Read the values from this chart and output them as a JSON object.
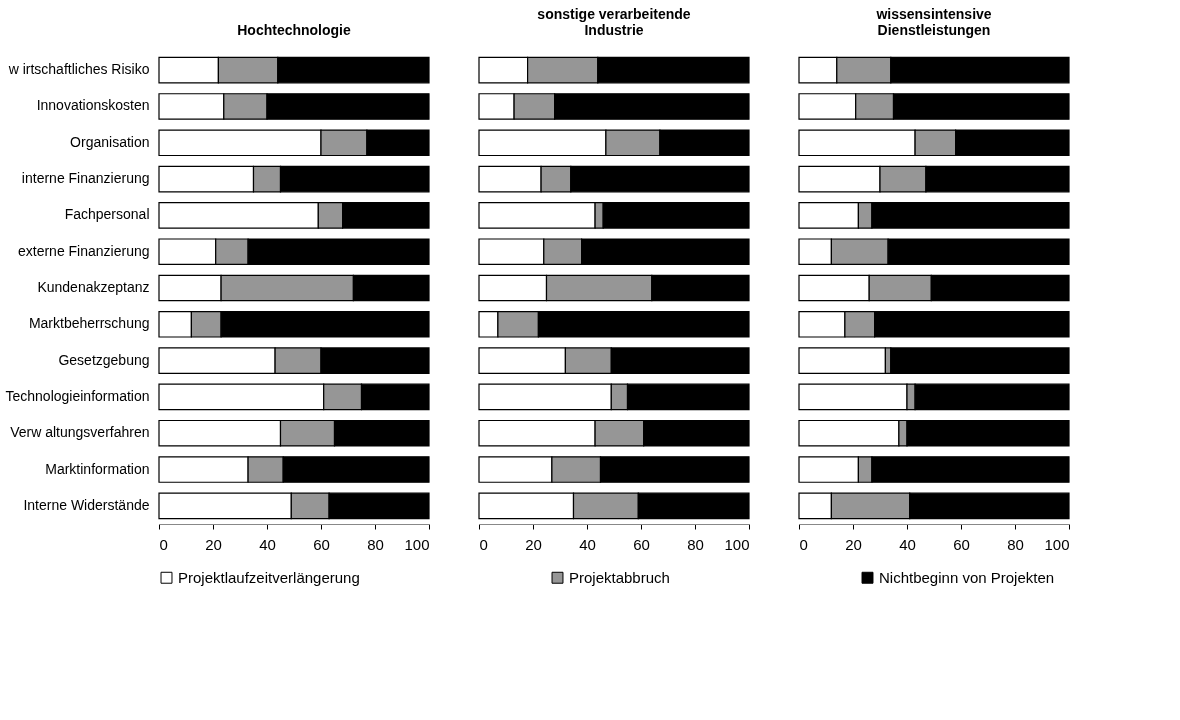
{
  "chart_data": [
    {
      "type": "bar",
      "orientation": "horizontal",
      "stacked": true,
      "title": "Hochtechnologie",
      "legend": "bottom",
      "grid": false,
      "categories": [
        "w irtschaftliches Risiko",
        "Innovationskosten",
        "Organisation",
        "interne Finanzierung",
        "Fachpersonal",
        "externe Finanzierung",
        "Kundenakzeptanz",
        "Marktbeherrschung",
        "Gesetzgebung",
        "Technologieinformation",
        "Verw altungsverfahren",
        "Marktinformation",
        "Interne Widerstände"
      ],
      "xlim": [
        0,
        100
      ],
      "xticks": [
        0,
        20,
        40,
        60,
        80,
        100
      ],
      "series": [
        {
          "name": "Projektlaufzeitverlängerung",
          "color": "#ffffff",
          "values": [
            22,
            24,
            60,
            35,
            59,
            21,
            23,
            12,
            43,
            61,
            45,
            33,
            49
          ]
        },
        {
          "name": "Projektabbruch",
          "color": "#969696",
          "values": [
            22,
            16,
            17,
            10,
            9,
            12,
            49,
            11,
            17,
            14,
            20,
            13,
            14
          ]
        },
        {
          "name": "Nichtbeginn von Projekten",
          "color": "#000000",
          "values": [
            56,
            60,
            23,
            55,
            32,
            67,
            28,
            77,
            40,
            25,
            35,
            54,
            37
          ]
        }
      ]
    },
    {
      "type": "bar",
      "orientation": "horizontal",
      "stacked": true,
      "title": "sonstige verarbeitende\nIndustrie",
      "legend": "bottom",
      "grid": false,
      "tick_labels": "x",
      "categories": [
        "w irtschaftliches Risiko",
        "Innovationskosten",
        "Organisation",
        "interne Finanzierung",
        "Fachpersonal",
        "externe Finanzierung",
        "Kundenakzeptanz",
        "Marktbeherrschung",
        "Gesetzgebung",
        "Technologieinformation",
        "Verw altungsverfahren",
        "Marktinformation",
        "Interne Widerstände"
      ],
      "xlim": [
        0,
        100
      ],
      "xticks": [
        0,
        20,
        40,
        60,
        80,
        100
      ],
      "series": [
        {
          "name": "Projektlaufzeitverlängerung",
          "color": "#ffffff",
          "values": [
            18,
            13,
            47,
            23,
            43,
            24,
            25,
            7,
            32,
            49,
            43,
            27,
            35
          ]
        },
        {
          "name": "Projektabbruch",
          "color": "#969696",
          "values": [
            26,
            15,
            20,
            11,
            3,
            14,
            39,
            15,
            17,
            6,
            18,
            18,
            24
          ]
        },
        {
          "name": "Nichtbeginn von Projekten",
          "color": "#000000",
          "values": [
            56,
            72,
            33,
            66,
            54,
            62,
            36,
            78,
            51,
            45,
            39,
            55,
            41
          ]
        }
      ]
    },
    {
      "type": "bar",
      "orientation": "horizontal",
      "stacked": true,
      "title": "wissensintensive\nDienstleistungen",
      "legend": "bottom",
      "grid": false,
      "tick_labels": "x",
      "categories": [
        "w irtschaftliches Risiko",
        "Innovationskosten",
        "Organisation",
        "interne Finanzierung",
        "Fachpersonal",
        "externe Finanzierung",
        "Kundenakzeptanz",
        "Marktbeherrschung",
        "Gesetzgebung",
        "Technologieinformation",
        "Verw altungsverfahren",
        "Marktinformation",
        "Interne Widerstände"
      ],
      "xlim": [
        0,
        100
      ],
      "xticks": [
        0,
        20,
        40,
        60,
        80,
        100
      ],
      "series": [
        {
          "name": "Projektlaufzeitverlängerung",
          "color": "#ffffff",
          "values": [
            14,
            21,
            43,
            30,
            22,
            12,
            26,
            17,
            32,
            40,
            37,
            22,
            12
          ]
        },
        {
          "name": "Projektabbruch",
          "color": "#969696",
          "values": [
            20,
            14,
            15,
            17,
            5,
            21,
            23,
            11,
            2,
            3,
            3,
            5,
            29
          ]
        },
        {
          "name": "Nichtbeginn von Projekten",
          "color": "#000000",
          "values": [
            66,
            65,
            42,
            53,
            73,
            67,
            51,
            72,
            66,
            57,
            60,
            73,
            59
          ]
        }
      ]
    }
  ]
}
